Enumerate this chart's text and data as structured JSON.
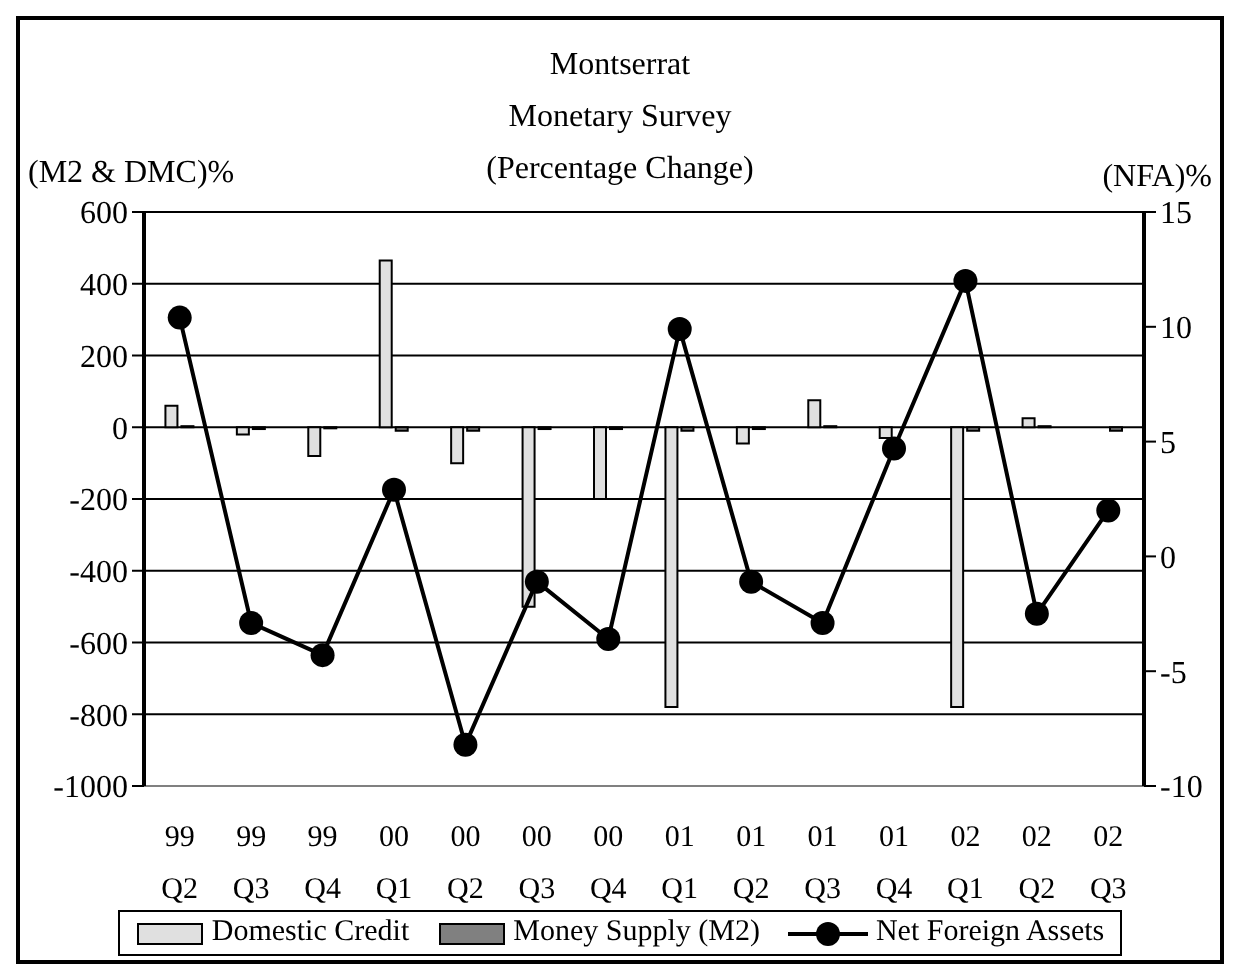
{
  "chart_data": {
    "type": "bar",
    "title": "Montserrat",
    "subtitle": "Monetary Survey\n(Percentage Change)",
    "ylabel": "(M2 & DMC)%",
    "y2label": "(NFA)%",
    "categories": [
      "99 Q2",
      "99 Q3",
      "99 Q4",
      "00 Q1",
      "00 Q2",
      "00 Q3",
      "00 Q4",
      "01 Q1",
      "01 Q2",
      "01 Q3",
      "01 Q4",
      "02 Q1",
      "02 Q2",
      "02 Q3"
    ],
    "series": [
      {
        "name": "Domestic Credit",
        "color": "#e0e0e0",
        "values": [
          60,
          -20,
          -80,
          465,
          -100,
          -500,
          -200,
          -780,
          -45,
          75,
          -30,
          -780,
          25,
          0
        ]
      },
      {
        "name": "Money Supply (M2)",
        "color": "#808080",
        "values": [
          3,
          -5,
          -3,
          -10,
          -10,
          -5,
          -5,
          -10,
          -5,
          3,
          null,
          -10,
          3,
          -10
        ]
      },
      {
        "name": "Net Foreign Assets",
        "type": "line",
        "axis": "y2",
        "color": "#000000",
        "values": [
          10.4,
          -2.9,
          -4.3,
          2.9,
          -8.2,
          -1.1,
          -3.6,
          9.9,
          -1.1,
          -2.9,
          4.7,
          12.0,
          -2.5,
          2.0
        ]
      }
    ],
    "ylim": [
      -1000,
      600
    ],
    "yticks": [
      -1000,
      -800,
      -600,
      -400,
      -200,
      0,
      200,
      400,
      600
    ],
    "y2lim": [
      -10,
      15
    ],
    "y2ticks": [
      -10,
      -5,
      0,
      5,
      10,
      15
    ],
    "grid": "y",
    "legend": "bottom",
    "marker": "circle",
    "line_style": "solid"
  }
}
